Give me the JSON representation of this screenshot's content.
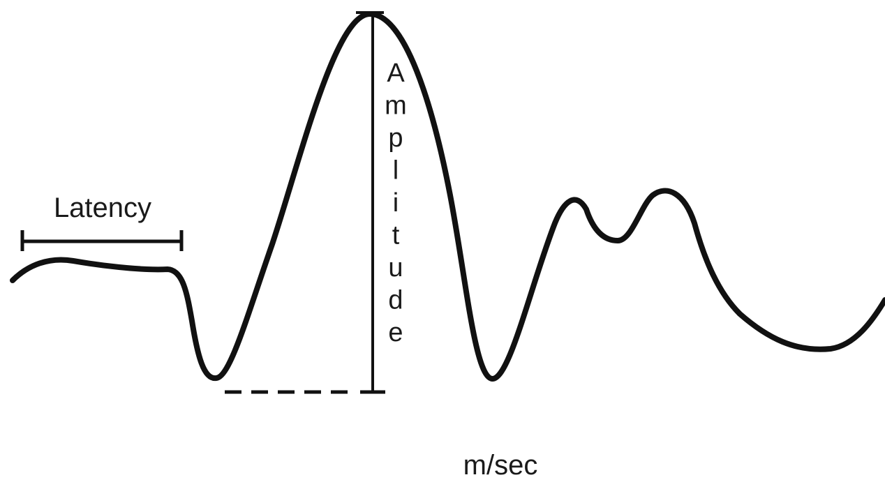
{
  "diagram": {
    "latency_label": "Latency",
    "amplitude_label": "Amplitude",
    "x_unit_label": "m/sec",
    "stroke_color": "#111111"
  }
}
